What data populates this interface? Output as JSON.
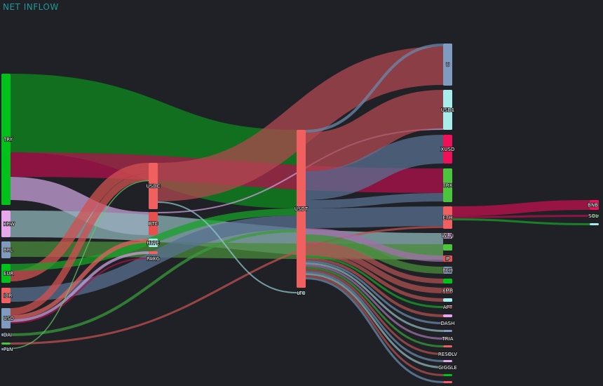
{
  "title": "NET INFLOW",
  "nodes": [
    {
      "id": "TRY",
      "label": "TRY",
      "column": 0,
      "value": 187,
      "color": "#00c21a"
    },
    {
      "id": "KRW",
      "label": "KRW",
      "column": 0,
      "value": 38,
      "color": "#e8a8ee"
    },
    {
      "id": "BRL",
      "label": "BRL",
      "column": 0,
      "value": 24,
      "color": "#7f9cc0"
    },
    {
      "id": "EUR",
      "label": "EUR",
      "column": 0,
      "value": 27,
      "color": "#00c21a"
    },
    {
      "id": "IDR",
      "label": "IDR",
      "column": 0,
      "value": 22,
      "color": "#f06060"
    },
    {
      "id": "USD",
      "label": "USD",
      "column": 0,
      "value": 29,
      "color": "#7f9cc0"
    },
    {
      "id": "DAI",
      "label": "DAI",
      "column": 0,
      "value": 4,
      "color": "#7f9cc0"
    },
    {
      "id": "G1",
      "label": "",
      "column": 0,
      "value": 3,
      "color": "#4cc43c"
    },
    {
      "id": "PLN",
      "label": "PLN",
      "column": 0,
      "value": 2,
      "color": "#7f9cc0"
    },
    {
      "id": "USDC",
      "label": "USDC",
      "column": 1,
      "value": 66,
      "color": "#f06060"
    },
    {
      "id": "BTC",
      "label": "BTC",
      "column": 1,
      "value": 33,
      "color": "#e85050"
    },
    {
      "id": "HYPE",
      "label": "HYPE",
      "column": 1,
      "value": 12,
      "color": "#a8ecec"
    },
    {
      "id": "R1",
      "label": "",
      "column": 1,
      "value": 4,
      "color": "#f06060"
    },
    {
      "id": "PAXG",
      "label": "PAXG",
      "column": 1,
      "value": 2,
      "color": "#e8a8ee"
    },
    {
      "id": "USDT",
      "label": "USDT",
      "column": 2,
      "value": 225,
      "color": "#f06060"
    },
    {
      "id": "LTC",
      "label": "LTC",
      "column": 2,
      "value": 3,
      "color": "#a8ecec"
    },
    {
      "id": "U",
      "label": "U",
      "column": 3,
      "value": 60,
      "color": "#7f9cc0"
    },
    {
      "id": "USD1",
      "label": "USD1",
      "column": 3,
      "value": 57,
      "color": "#a8ecec"
    },
    {
      "id": "XUSD",
      "label": "XUSD",
      "column": 3,
      "value": 41,
      "color": "#f0105a"
    },
    {
      "id": "TRX",
      "label": "TRX",
      "column": 3,
      "value": 48,
      "color": "#4cc43c"
    },
    {
      "id": "ETH",
      "label": "ETH",
      "column": 3,
      "value": 32,
      "color": "#f06060"
    },
    {
      "id": "WLFI",
      "label": "WLFI",
      "column": 3,
      "value": 8,
      "color": "#e8a8ee"
    },
    {
      "id": "G2",
      "label": "",
      "column": 3,
      "value": 9,
      "color": "#4cc43c"
    },
    {
      "id": "IP",
      "label": "IP",
      "column": 3,
      "value": 9,
      "color": "#e85050"
    },
    {
      "id": "BCH",
      "label": "BCH",
      "column": 3,
      "value": 10,
      "color": "#7f9cc0"
    },
    {
      "id": "G3",
      "label": "",
      "column": 3,
      "value": 7,
      "color": "#00c21a"
    },
    {
      "id": "XMR",
      "label": "XMR",
      "column": 3,
      "value": 8,
      "color": "#f06060"
    },
    {
      "id": "L1",
      "label": "",
      "column": 3,
      "value": 5,
      "color": "#a8ecec"
    },
    {
      "id": "APT",
      "label": "APT",
      "column": 3,
      "value": 3,
      "color": "#f06060"
    },
    {
      "id": "P1",
      "label": "",
      "column": 3,
      "value": 4,
      "color": "#e8a8ee"
    },
    {
      "id": "DASH",
      "label": "DASH",
      "column": 3,
      "value": 3,
      "color": "#7f9cc0"
    },
    {
      "id": "B1",
      "label": "",
      "column": 3,
      "value": 3,
      "color": "#7f9cc0"
    },
    {
      "id": "TRIA",
      "label": "TRIA",
      "column": 3,
      "value": 3,
      "color": "#e8a8ee"
    },
    {
      "id": "R2",
      "label": "",
      "column": 3,
      "value": 3,
      "color": "#f06060"
    },
    {
      "id": "RESOLV",
      "label": "RESOLV",
      "column": 3,
      "value": 3,
      "color": "#7f9cc0"
    },
    {
      "id": "P2",
      "label": "",
      "column": 3,
      "value": 3,
      "color": "#e8a8ee"
    },
    {
      "id": "GIGGLE",
      "label": "GIGGLE",
      "column": 3,
      "value": 3,
      "color": "#7f9cc0"
    },
    {
      "id": "G4",
      "label": "",
      "column": 3,
      "value": 3,
      "color": "#00c21a"
    },
    {
      "id": "R3",
      "label": "",
      "column": 3,
      "value": 3,
      "color": "#f06060"
    },
    {
      "id": "BNB",
      "label": "BNB",
      "column": 4,
      "value": 14,
      "color": "#f0105a"
    },
    {
      "id": "SOL",
      "label": "SOL",
      "column": 4,
      "value": 3,
      "color": "#4cc43c"
    },
    {
      "id": "L2",
      "label": "",
      "column": 4,
      "value": 3,
      "color": "#a8ecec"
    }
  ],
  "links": [
    {
      "source": "TRY",
      "target": "USDT",
      "value": 112,
      "color": "#0e8a1e"
    },
    {
      "source": "TRY",
      "target": "TRX",
      "value": 35,
      "color": "#b0104e"
    },
    {
      "source": "TRY",
      "target": "BTC",
      "value": 33,
      "color": "#c8a0d8"
    },
    {
      "source": "KRW",
      "target": "WLFI",
      "value": 38,
      "color": "#8fb4b8"
    },
    {
      "source": "BRL",
      "target": "G2",
      "value": 22,
      "color": "#4a8a3a"
    },
    {
      "source": "EUR",
      "target": "USDC",
      "value": 15,
      "color": "#d05050"
    },
    {
      "source": "EUR",
      "target": "USDT",
      "value": 10,
      "color": "#18a028"
    },
    {
      "source": "IDR",
      "target": "USDT",
      "value": 20,
      "color": "#5a7090"
    },
    {
      "source": "USD",
      "target": "USDC",
      "value": 10,
      "color": "#d05050"
    },
    {
      "source": "USD",
      "target": "HYPE",
      "value": 6,
      "color": "#e06060"
    },
    {
      "source": "USD",
      "target": "R1",
      "value": 4,
      "color": "#c8a0d8"
    },
    {
      "source": "USD",
      "target": "PAXG",
      "value": 2,
      "color": "#b0104e"
    },
    {
      "source": "DAI",
      "target": "USDT",
      "value": 4,
      "color": "#3a9a3a"
    },
    {
      "source": "G1",
      "target": "ETH",
      "value": 3,
      "color": "#c05050"
    },
    {
      "source": "PLN",
      "target": "USDC",
      "value": 1,
      "color": "#6ac46a"
    },
    {
      "source": "USDC",
      "target": "U",
      "value": 55,
      "color": "#b04850"
    },
    {
      "source": "USDC",
      "target": "LTC",
      "value": 2,
      "color": "#8fc4c8"
    },
    {
      "source": "BTC",
      "target": "USD1",
      "value": 2,
      "color": "#c8a0d8"
    },
    {
      "source": "USDT",
      "target": "U",
      "value": 4,
      "color": "#6a88a8"
    },
    {
      "source": "USDT",
      "target": "USD1",
      "value": 55,
      "color": "#b04850"
    },
    {
      "source": "USDT",
      "target": "XUSD",
      "value": 41,
      "color": "#5a7090"
    },
    {
      "source": "USDT",
      "target": "TRX",
      "value": 12,
      "color": "#5a7090"
    },
    {
      "source": "USDT",
      "target": "ETH",
      "value": 28,
      "color": "#5a7090"
    },
    {
      "source": "USDT",
      "target": "IP",
      "value": 9,
      "color": "#a070a8"
    },
    {
      "source": "USDT",
      "target": "BCH",
      "value": 10,
      "color": "#4a8a3a"
    },
    {
      "source": "USDT",
      "target": "G3",
      "value": 7,
      "color": "#b05050"
    },
    {
      "source": "USDT",
      "target": "XMR",
      "value": 8,
      "color": "#b05050"
    },
    {
      "source": "USDT",
      "target": "L1",
      "value": 5,
      "color": "#b05050"
    },
    {
      "source": "USDT",
      "target": "APT",
      "value": 3,
      "color": "#18a028"
    },
    {
      "source": "USDT",
      "target": "P1",
      "value": 4,
      "color": "#b05050"
    },
    {
      "source": "USDT",
      "target": "DASH",
      "value": 3,
      "color": "#6a88a8"
    },
    {
      "source": "USDT",
      "target": "B1",
      "value": 3,
      "color": "#8fb4b8"
    },
    {
      "source": "USDT",
      "target": "TRIA",
      "value": 3,
      "color": "#a070a8"
    },
    {
      "source": "USDT",
      "target": "R2",
      "value": 3,
      "color": "#3a9a3a"
    },
    {
      "source": "USDT",
      "target": "RESOLV",
      "value": 3,
      "color": "#b05050"
    },
    {
      "source": "USDT",
      "target": "P2",
      "value": 3,
      "color": "#6a88a8"
    },
    {
      "source": "USDT",
      "target": "GIGGLE",
      "value": 3,
      "color": "#8fb4b8"
    },
    {
      "source": "USDT",
      "target": "G4",
      "value": 3,
      "color": "#b05050"
    },
    {
      "source": "USDT",
      "target": "R3",
      "value": 3,
      "color": "#6a88a8"
    },
    {
      "source": "ETH",
      "target": "BNB",
      "value": 14,
      "color": "#c0104e"
    },
    {
      "source": "ETH",
      "target": "SOL",
      "value": 3,
      "color": "#b0104e"
    },
    {
      "source": "ETH",
      "target": "L2",
      "value": 3,
      "color": "#18a028"
    }
  ]
}
